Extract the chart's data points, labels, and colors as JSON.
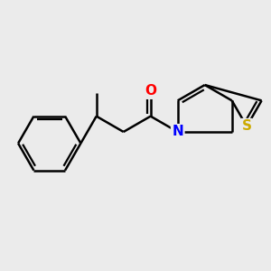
{
  "background_color": "#ebebeb",
  "bond_color": "#000000",
  "atom_colors": {
    "O": "#ff0000",
    "N": "#0000ff",
    "S": "#ccaa00",
    "C": "#000000"
  },
  "figsize": [
    3.0,
    3.0
  ],
  "dpi": 100
}
